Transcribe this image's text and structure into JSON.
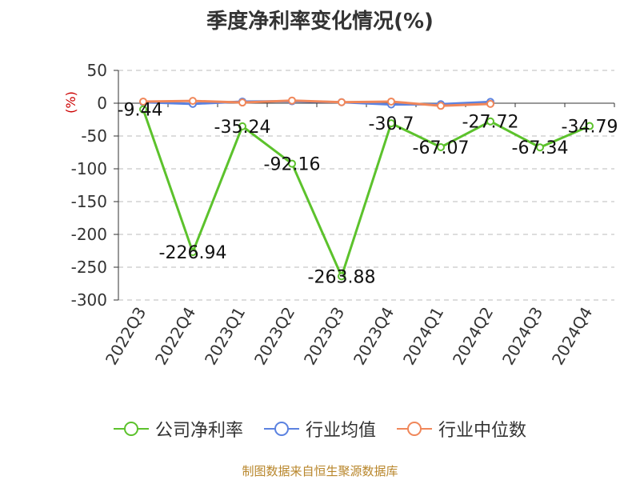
{
  "title": "季度净利率变化情况(%)",
  "source_text": "制图数据来自恒生聚源数据库",
  "colors": {
    "company": "#5cc22c",
    "industry_avg": "#5b82e0",
    "industry_median": "#f0875a",
    "ylabel": "#cc0000",
    "source": "#b8862b"
  },
  "chart_data": {
    "type": "line",
    "ylabel": "(%)",
    "ylim": [
      -300,
      50
    ],
    "yticks": [
      50,
      0,
      -50,
      -100,
      -150,
      -200,
      -250,
      -300
    ],
    "grid": true,
    "legend_position": "bottom",
    "categories": [
      "2022Q3",
      "2022Q4",
      "2023Q1",
      "2023Q2",
      "2023Q3",
      "2023Q4",
      "2024Q1",
      "2024Q2",
      "2024Q3",
      "2024Q4"
    ],
    "series": [
      {
        "name": "公司净利率",
        "key": "company",
        "values": [
          -9.44,
          -226.94,
          -35.24,
          -92.16,
          -263.88,
          -30.7,
          -67.07,
          -27.72,
          -67.34,
          -34.79
        ],
        "labels": [
          "-9.44",
          "-226.94",
          "-35.24",
          "-92.16",
          "-263.88",
          "-30.7",
          "-67.07",
          "-27.72",
          "-67.34",
          "-34.79"
        ]
      },
      {
        "name": "行业均值",
        "key": "industry_avg",
        "values": [
          1.5,
          -1.0,
          2.5,
          3.0,
          1.5,
          -2.0,
          -1.5,
          2.0,
          null,
          null
        ]
      },
      {
        "name": "行业中位数",
        "key": "industry_median",
        "values": [
          2.5,
          3.5,
          1.0,
          4.0,
          1.5,
          2.5,
          -4.0,
          -1.0,
          null,
          null
        ]
      }
    ]
  }
}
